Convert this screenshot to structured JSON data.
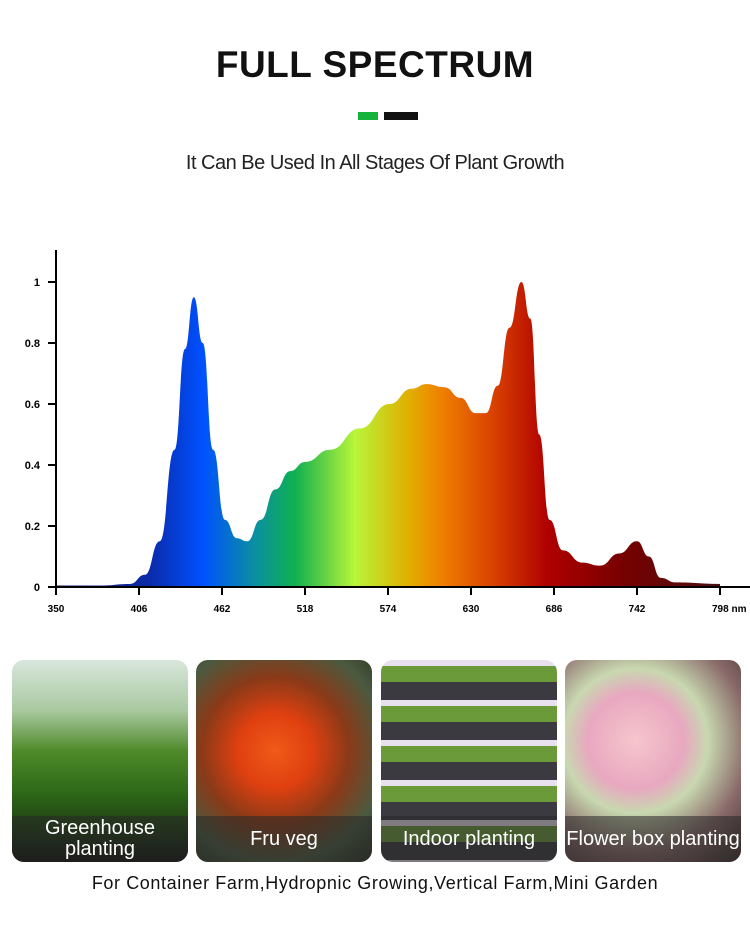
{
  "title": "FULL SPECTRUM",
  "subtitle": "It Can Be Used In All Stages Of Plant Growth",
  "accent_colors": {
    "green": "#16b33a",
    "black": "#111111"
  },
  "chart_data": {
    "type": "area",
    "title": "",
    "xlabel": "nm",
    "ylabel": "",
    "xlim": [
      350,
      798
    ],
    "ylim": [
      0,
      1.1
    ],
    "xticks": [
      "350",
      "406",
      "462",
      "518",
      "574",
      "630",
      "686",
      "742",
      "798 nm"
    ],
    "yticks": [
      "0",
      "0.2",
      "0.4",
      "0.6",
      "0.8",
      "1"
    ],
    "points": [
      [
        350,
        0.005
      ],
      [
        380,
        0.005
      ],
      [
        400,
        0.01
      ],
      [
        410,
        0.04
      ],
      [
        420,
        0.15
      ],
      [
        430,
        0.45
      ],
      [
        437,
        0.78
      ],
      [
        443,
        0.95
      ],
      [
        449,
        0.8
      ],
      [
        456,
        0.45
      ],
      [
        464,
        0.22
      ],
      [
        472,
        0.16
      ],
      [
        479,
        0.15
      ],
      [
        488,
        0.22
      ],
      [
        498,
        0.32
      ],
      [
        508,
        0.38
      ],
      [
        518,
        0.41
      ],
      [
        535,
        0.45
      ],
      [
        555,
        0.52
      ],
      [
        575,
        0.6
      ],
      [
        590,
        0.65
      ],
      [
        600,
        0.665
      ],
      [
        612,
        0.655
      ],
      [
        623,
        0.62
      ],
      [
        633,
        0.57
      ],
      [
        640,
        0.57
      ],
      [
        648,
        0.66
      ],
      [
        656,
        0.85
      ],
      [
        664,
        1.0
      ],
      [
        670,
        0.88
      ],
      [
        676,
        0.5
      ],
      [
        683,
        0.22
      ],
      [
        692,
        0.12
      ],
      [
        705,
        0.08
      ],
      [
        717,
        0.07
      ],
      [
        730,
        0.11
      ],
      [
        742,
        0.15
      ],
      [
        750,
        0.1
      ],
      [
        758,
        0.03
      ],
      [
        768,
        0.015
      ],
      [
        798,
        0.01
      ]
    ]
  },
  "tiles": [
    {
      "label": "Greenhouse planting"
    },
    {
      "label": "Fru veg"
    },
    {
      "label": "Indoor planting"
    },
    {
      "label": "Flower box planting"
    }
  ],
  "footer": "For Container Farm,Hydropnic Growing,Vertical Farm,Mini Garden"
}
